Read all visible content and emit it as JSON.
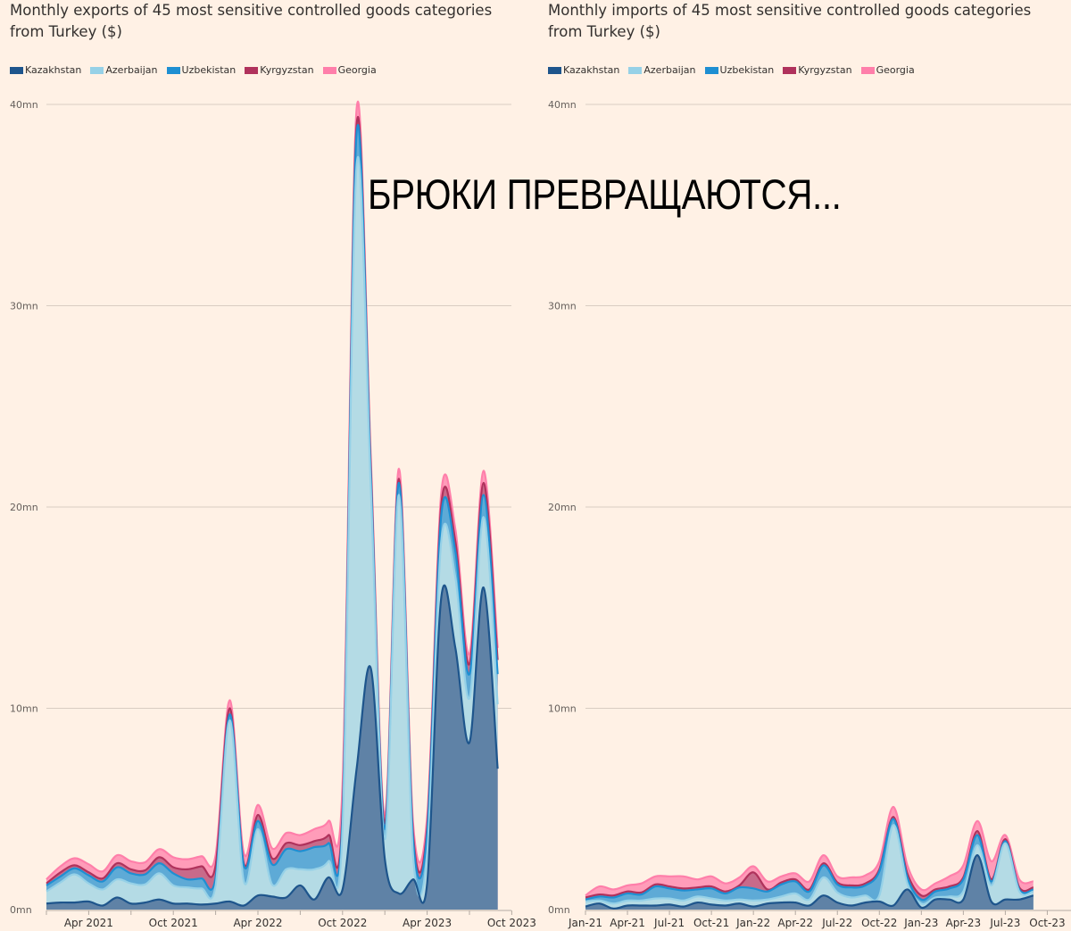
{
  "overlay_caption": "БРЮКИ ПРЕВРАЩАЮТСЯ...",
  "legend": [
    {
      "name": "Kazakhstan",
      "color": "#1e558c"
    },
    {
      "name": "Azerbaijan",
      "color": "#96d1e7"
    },
    {
      "name": "Uzbekistan",
      "color": "#1e8fd2"
    },
    {
      "name": "Kyrgyzstan",
      "color": "#b0325c"
    },
    {
      "name": "Georgia",
      "color": "#ff7faa"
    }
  ],
  "left_chart": {
    "title": "Monthly exports of 45 most sensitive controlled goods categories from Turkey ($)",
    "y_ticks": [
      "0mn",
      "10mn",
      "20mn",
      "30mn",
      "40mn"
    ],
    "x_ticks": [
      "Apr 2021",
      "Oct 2021",
      "Apr 2022",
      "Oct 2022",
      "Apr 2023",
      "Oct 2023"
    ]
  },
  "right_chart": {
    "title": "Monthly imports of 45 most sensitive controlled goods categories from Turkey ($)",
    "y_ticks": [
      "0mn",
      "10mn",
      "20mn",
      "30mn",
      "40mn"
    ],
    "x_ticks": [
      "Jan-21",
      "Apr-21",
      "Jul-21",
      "Oct-21",
      "Jan-22",
      "Apr-22",
      "Jul-22",
      "Oct-22",
      "Jan-23",
      "Apr-23",
      "Jul-23",
      "Oct-23"
    ]
  },
  "chart_data": [
    {
      "type": "area",
      "stacked": true,
      "title": "Monthly exports of 45 most sensitive controlled goods categories from Turkey ($)",
      "xlabel": "",
      "ylabel": "",
      "ylim": [
        0,
        40
      ],
      "y_unit": "mn USD",
      "grid": true,
      "legend_position": "top",
      "x": [
        "Jan 2021",
        "Feb 2021",
        "Mar 2021",
        "Apr 2021",
        "May 2021",
        "Jun 2021",
        "Jul 2021",
        "Aug 2021",
        "Sep 2021",
        "Oct 2021",
        "Nov 2021",
        "Dec 2021",
        "Jan 2022",
        "Feb 2022",
        "Mar 2022",
        "Apr 2022",
        "May 2022",
        "Jun 2022",
        "Jul 2022",
        "Aug 2022",
        "Sep 2022",
        "Oct 2022",
        "Nov 2022",
        "Dec 2022",
        "Jan 2023",
        "Feb 2023",
        "Mar 2023",
        "Apr 2023",
        "May 2023",
        "Jun 2023",
        "Jul 2023",
        "Aug 2023",
        "Sep 2023"
      ],
      "series": [
        {
          "name": "Kazakhstan",
          "values": [
            0.3,
            0.35,
            0.35,
            0.4,
            0.2,
            0.6,
            0.3,
            0.35,
            0.5,
            0.3,
            0.3,
            0.25,
            0.3,
            0.4,
            0.2,
            0.7,
            0.65,
            0.6,
            1.2,
            0.5,
            1.6,
            1.0,
            7.0,
            12.0,
            2.5,
            0.8,
            1.5,
            1.3,
            15.5,
            13.0,
            8.3,
            16.0,
            7.0
          ]
        },
        {
          "name": "Azerbaijan",
          "values": [
            0.6,
            1.0,
            1.4,
            0.9,
            0.8,
            0.9,
            1.0,
            0.9,
            1.3,
            0.9,
            0.8,
            0.8,
            0.9,
            9.0,
            1.2,
            3.3,
            0.6,
            1.4,
            0.8,
            1.5,
            0.8,
            3.0,
            30.0,
            9.0,
            1.0,
            19.8,
            1.2,
            1.5,
            2.8,
            3.5,
            2.2,
            3.5,
            3.2
          ]
        },
        {
          "name": "Uzbekistan",
          "values": [
            0.3,
            0.3,
            0.3,
            0.4,
            0.4,
            0.6,
            0.5,
            0.5,
            0.5,
            0.6,
            0.4,
            0.5,
            0.4,
            0.3,
            0.8,
            0.4,
            1.0,
            1.0,
            0.9,
            1.1,
            0.9,
            0.6,
            1.6,
            0.7,
            0.5,
            0.6,
            0.8,
            1.0,
            1.3,
            1.3,
            1.2,
            1.1,
            1.5
          ]
        },
        {
          "name": "Kyrgyzstan",
          "values": [
            0.1,
            0.2,
            0.15,
            0.15,
            0.15,
            0.2,
            0.2,
            0.2,
            0.3,
            0.3,
            0.5,
            0.6,
            0.6,
            0.3,
            0.1,
            0.3,
            0.3,
            0.3,
            0.3,
            0.3,
            0.4,
            0.4,
            0.4,
            0.4,
            0.3,
            0.2,
            0.3,
            0.3,
            0.5,
            0.5,
            0.5,
            0.6,
            0.7
          ]
        },
        {
          "name": "Georgia",
          "values": [
            0.2,
            0.3,
            0.35,
            0.4,
            0.35,
            0.4,
            0.4,
            0.4,
            0.4,
            0.5,
            0.5,
            0.5,
            0.5,
            0.4,
            0.5,
            0.5,
            0.5,
            0.5,
            0.5,
            0.6,
            0.7,
            1.2,
            0.8,
            0.4,
            0.4,
            0.5,
            0.5,
            0.5,
            0.6,
            0.6,
            0.5,
            0.6,
            0.6
          ]
        }
      ]
    },
    {
      "type": "area",
      "stacked": true,
      "title": "Monthly imports of 45 most sensitive controlled goods categories from Turkey ($)",
      "xlabel": "",
      "ylabel": "",
      "ylim": [
        0,
        40
      ],
      "y_unit": "mn USD",
      "grid": true,
      "legend_position": "top",
      "x": [
        "Jan-21",
        "Feb-21",
        "Mar-21",
        "Apr-21",
        "May-21",
        "Jun-21",
        "Jul-21",
        "Aug-21",
        "Sep-21",
        "Oct-21",
        "Nov-21",
        "Dec-21",
        "Jan-22",
        "Feb-22",
        "Mar-22",
        "Apr-22",
        "May-22",
        "Jun-22",
        "Jul-22",
        "Aug-22",
        "Sep-22",
        "Oct-22",
        "Nov-22",
        "Dec-22",
        "Jan-23",
        "Feb-23",
        "Mar-23",
        "Apr-23",
        "May-23",
        "Jun-23",
        "Jul-23",
        "Aug-23",
        "Sep-23"
      ],
      "series": [
        {
          "name": "Kazakhstan",
          "values": [
            0.15,
            0.3,
            0.05,
            0.2,
            0.2,
            0.2,
            0.25,
            0.15,
            0.35,
            0.25,
            0.2,
            0.3,
            0.15,
            0.3,
            0.35,
            0.35,
            0.2,
            0.7,
            0.35,
            0.2,
            0.35,
            0.4,
            0.2,
            1.0,
            0.1,
            0.5,
            0.5,
            0.5,
            2.7,
            0.4,
            0.5,
            0.5,
            0.7
          ]
        },
        {
          "name": "Azerbaijan",
          "values": [
            0.25,
            0.15,
            0.25,
            0.25,
            0.25,
            0.35,
            0.3,
            0.3,
            0.3,
            0.3,
            0.25,
            0.2,
            0.3,
            0.2,
            0.3,
            0.45,
            0.3,
            0.9,
            0.5,
            0.4,
            0.35,
            0.3,
            4.0,
            0.3,
            0.2,
            0.1,
            0.15,
            0.4,
            0.5,
            0.8,
            2.8,
            0.4,
            0.2
          ]
        },
        {
          "name": "Uzbekistan",
          "values": [
            0.1,
            0.2,
            0.3,
            0.35,
            0.3,
            0.6,
            0.5,
            0.5,
            0.35,
            0.5,
            0.35,
            0.6,
            0.6,
            0.4,
            0.6,
            0.6,
            0.4,
            0.6,
            0.4,
            0.5,
            0.5,
            1.2,
            0.3,
            0.3,
            0.2,
            0.3,
            0.4,
            0.6,
            0.5,
            0.2,
            0.1,
            0.1,
            0.1
          ]
        },
        {
          "name": "Kyrgyzstan",
          "values": [
            0.1,
            0.1,
            0.1,
            0.1,
            0.1,
            0.1,
            0.1,
            0.1,
            0.1,
            0.1,
            0.1,
            0.1,
            0.8,
            0.1,
            0.1,
            0.1,
            0.1,
            0.1,
            0.1,
            0.1,
            0.1,
            0.1,
            0.1,
            0.2,
            0.2,
            0.1,
            0.1,
            0.1,
            0.2,
            0.1,
            0.1,
            0.1,
            0.1
          ]
        },
        {
          "name": "Georgia",
          "values": [
            0.1,
            0.4,
            0.3,
            0.3,
            0.45,
            0.4,
            0.5,
            0.6,
            0.4,
            0.5,
            0.4,
            0.4,
            0.3,
            0.4,
            0.3,
            0.3,
            0.4,
            0.4,
            0.3,
            0.4,
            0.4,
            0.4,
            0.5,
            0.4,
            0.3,
            0.3,
            0.5,
            0.6,
            0.5,
            0.9,
            0.2,
            0.4,
            0.3
          ]
        }
      ]
    }
  ]
}
